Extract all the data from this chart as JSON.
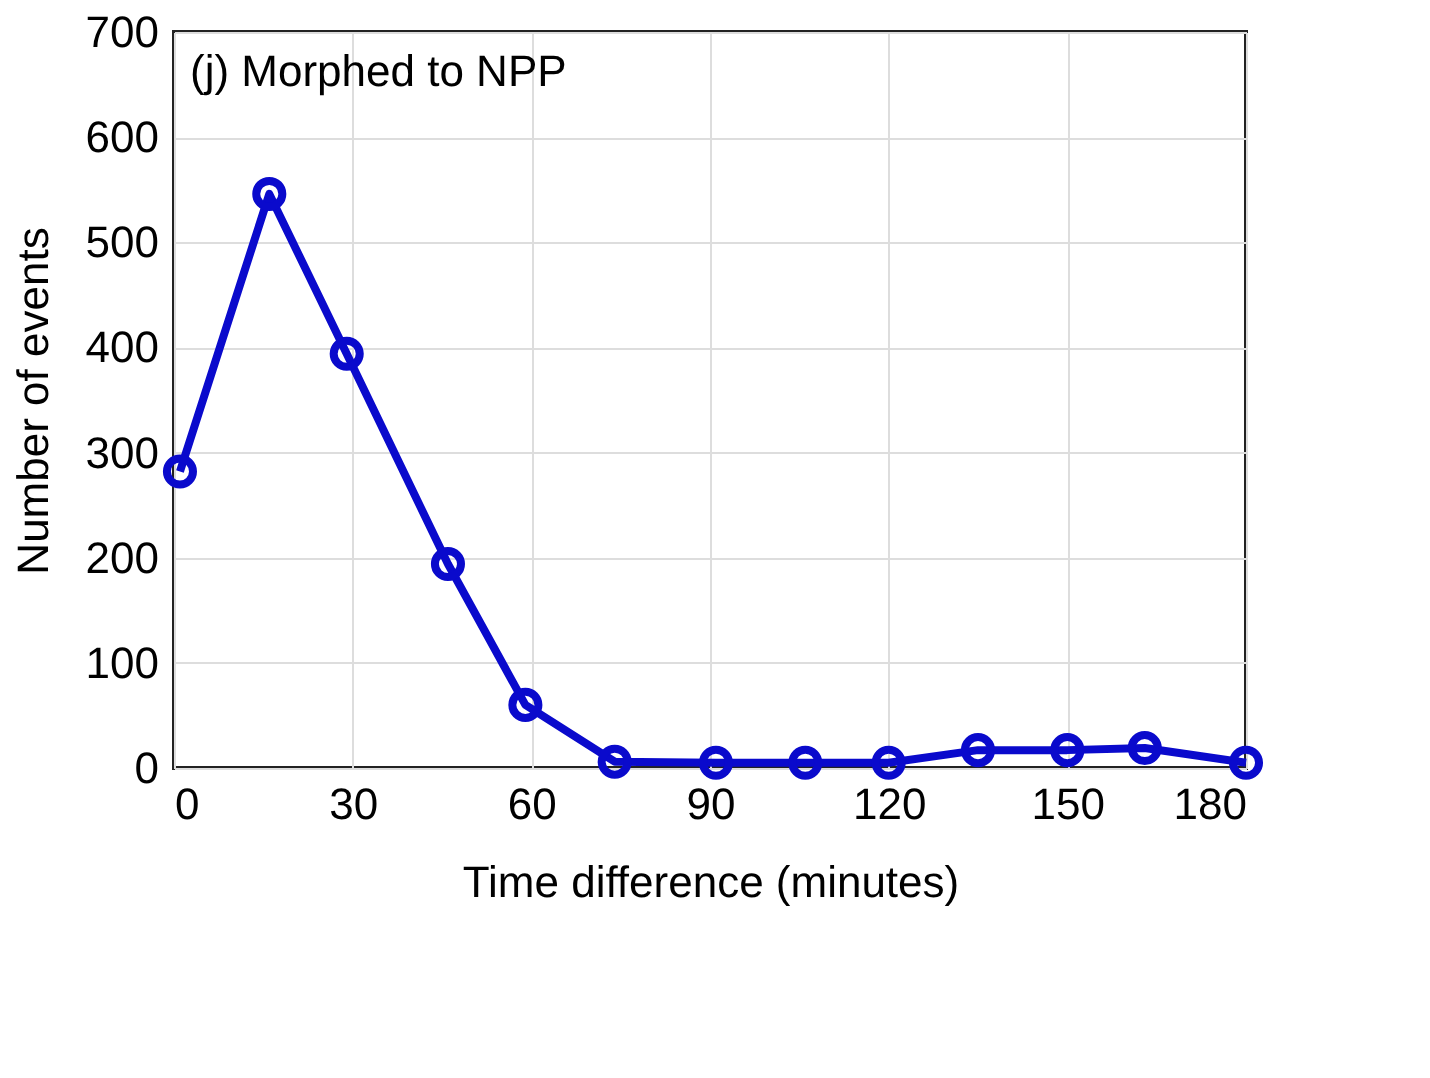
{
  "chart_data": {
    "type": "line",
    "xlabel": "Time difference (minutes)",
    "ylabel": "Number of events",
    "annotations": [
      "(j) Morphed to NPP"
    ],
    "x": [
      1,
      16,
      29,
      46,
      59,
      74,
      91,
      106,
      120,
      135,
      150,
      163,
      180
    ],
    "series": [
      {
        "color": "#0a0acc",
        "values": [
          282,
          546,
          394,
          194,
          60,
          6,
          5,
          5,
          5,
          17,
          17,
          19,
          5
        ]
      }
    ],
    "xlim": [
      0,
      180
    ],
    "xticks": [
      0,
      30,
      60,
      90,
      120,
      150,
      180
    ],
    "ylim": [
      0,
      700
    ],
    "yticks": [
      0,
      100,
      200,
      300,
      400,
      500,
      600,
      700
    ],
    "grid": true,
    "marker": "circle",
    "line_style": "solid"
  }
}
